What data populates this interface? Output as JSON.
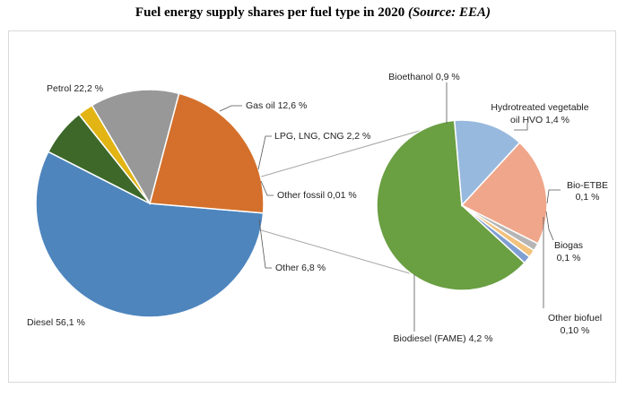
{
  "title": {
    "main": "Fuel energy supply shares per fuel type in 2020 ",
    "source": "(Source: EEA)"
  },
  "chart_data": [
    {
      "type": "pie",
      "slices": [
        {
          "label": "Diesel 56,1 %",
          "value": 56.1,
          "color": "#4e85bd"
        },
        {
          "label": "Petrol 22,2 %",
          "value": 22.2,
          "color": "#d4702b"
        },
        {
          "label": "Gas oil 12,6 %",
          "value": 12.6,
          "color": "#989898"
        },
        {
          "label": "LPG, LNG, CNG 2,2 %",
          "value": 2.2,
          "color": "#e2b414"
        },
        {
          "label": "Other fossil 0,01 %",
          "value": 0.01,
          "color": "#2f5f95"
        },
        {
          "label": "Other 6,8 %",
          "value": 6.8,
          "color": "#3d6829"
        }
      ]
    },
    {
      "type": "pie",
      "breakdown_of": "Other 6,8 %",
      "slices": [
        {
          "label": "Biodiesel (FAME) 4,2 %",
          "value": 4.2,
          "color": "#6a9f42"
        },
        {
          "label": "Bioethanol 0,9 %",
          "value": 0.9,
          "color": "#98b9de"
        },
        {
          "label": "Hydrotreated vegetable oil HVO 1,4 %",
          "value": 1.4,
          "color": "#f0a68a"
        },
        {
          "label": "Bio-ETBE 0,1 %",
          "value": 0.1,
          "color": "#b5b5b5"
        },
        {
          "label": "Biogas 0,1 %",
          "value": 0.1,
          "color": "#f3c27d"
        },
        {
          "label": "Other biofuel 0,10 %",
          "value": 0.1,
          "color": "#7f9fd3"
        }
      ]
    }
  ]
}
